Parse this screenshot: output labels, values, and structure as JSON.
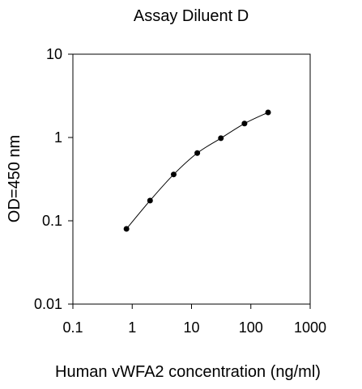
{
  "chart_data": {
    "type": "scatter",
    "title": "Assay Diluent D",
    "xlabel": "Human vWFA2 concentration (ng/ml)",
    "ylabel": "OD=450 nm",
    "x_scale": "log",
    "y_scale": "log",
    "xlim": [
      0.1,
      1000
    ],
    "ylim": [
      0.01,
      10
    ],
    "x_ticks": [
      "0.1",
      "1",
      "10",
      "100",
      "1000"
    ],
    "y_ticks": [
      "0.01",
      "0.1",
      "1",
      "10"
    ],
    "grid": false,
    "series": [
      {
        "x": [
          0.8,
          2,
          5,
          12.5,
          31.25,
          78.125,
          195.3
        ],
        "y": [
          0.08,
          0.175,
          0.36,
          0.65,
          0.98,
          1.47,
          2.0
        ],
        "marker": "circle",
        "line": "smooth",
        "color": "#000000"
      }
    ]
  }
}
